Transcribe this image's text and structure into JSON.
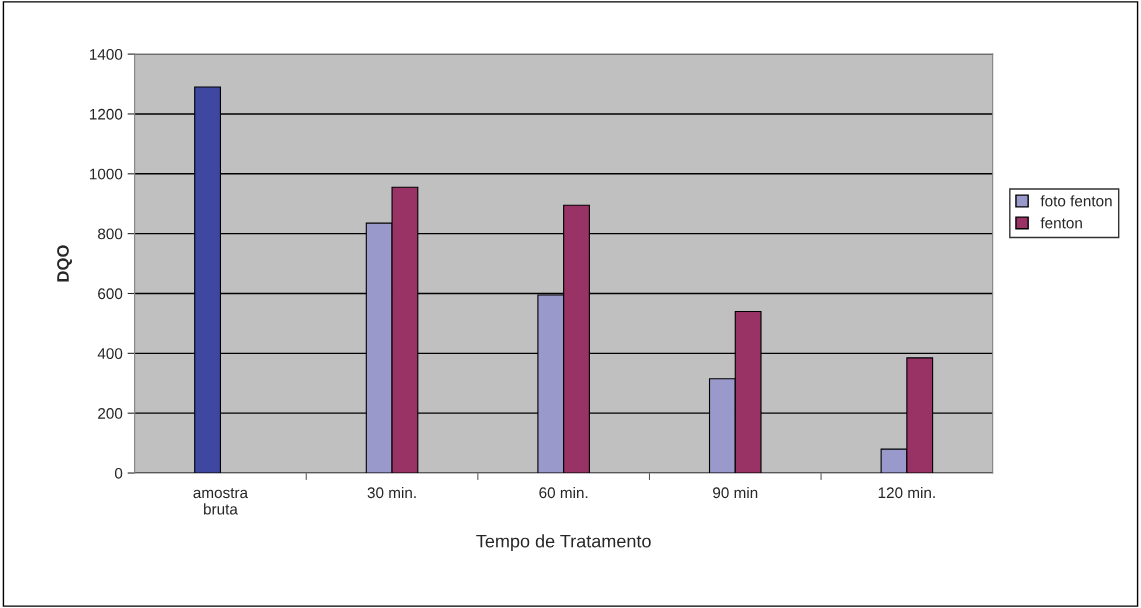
{
  "chart_data": {
    "type": "bar",
    "xlabel": "Tempo de Tratamento",
    "ylabel": "DQO",
    "categories": [
      "amostra\nbruta",
      "30 min.",
      "60 min.",
      "90 min",
      "120 min."
    ],
    "series": [
      {
        "name": "foto fenton",
        "color": "#9999cc",
        "colors": [
          "#3f48a0",
          "#9999cc",
          "#9999cc",
          "#9999cc",
          "#9999cc"
        ],
        "values": [
          1290,
          835,
          595,
          315,
          80
        ]
      },
      {
        "name": "fenton",
        "color": "#993366",
        "values": [
          null,
          955,
          895,
          540,
          385
        ]
      }
    ],
    "ylim": [
      0,
      1400
    ],
    "yticks": [
      0,
      200,
      400,
      600,
      800,
      1000,
      1200,
      1400
    ],
    "grid": "y",
    "legend": "right"
  }
}
